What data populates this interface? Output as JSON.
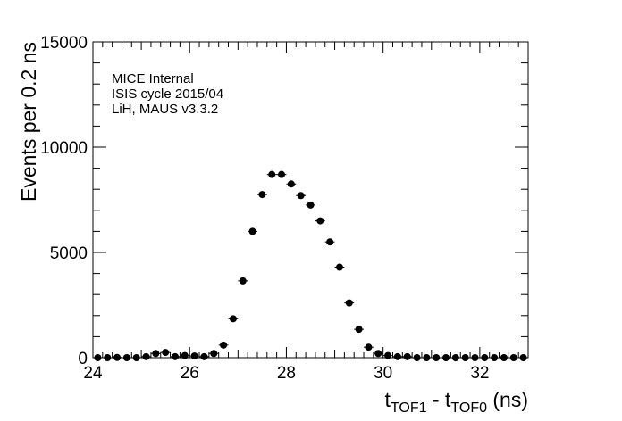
{
  "chart_data": {
    "type": "scatter",
    "title": "",
    "xlabel": {
      "main": "t",
      "sub1": "TOF1",
      "mid": " - t",
      "sub2": "TOF0",
      "unit": " (ns)"
    },
    "ylabel": "Events per 0.2 ns",
    "xlim": [
      24,
      33
    ],
    "ylim": [
      0,
      15000
    ],
    "x_major_ticks": [
      24,
      26,
      28,
      30,
      32
    ],
    "x_tick_labels": [
      "24",
      "26",
      "28",
      "30",
      "32"
    ],
    "y_major_ticks": [
      0,
      5000,
      10000,
      15000
    ],
    "y_tick_labels": [
      "0",
      "5000",
      "10000",
      "15000"
    ],
    "grid": false,
    "annotations": [
      "MICE Internal",
      "ISIS cycle 2015/04",
      "LiH, MAUS v3.3.2"
    ],
    "marker_color": "#000000",
    "series": [
      {
        "x": [
          24.1,
          24.3,
          24.5,
          24.7,
          24.9,
          25.1,
          25.3,
          25.5,
          25.7,
          25.9,
          26.1,
          26.3,
          26.5,
          26.7,
          26.9,
          27.1,
          27.3,
          27.5,
          27.7,
          27.9,
          28.1,
          28.3,
          28.5,
          28.7,
          28.9,
          29.1,
          29.3,
          29.5,
          29.7,
          29.9,
          30.1,
          30.3,
          30.5,
          30.7,
          30.9,
          31.1,
          31.3,
          31.5,
          31.7,
          31.9,
          32.1,
          32.3,
          32.5,
          32.7,
          32.9
        ],
        "y": [
          0,
          0,
          10,
          0,
          0,
          50,
          200,
          250,
          50,
          100,
          80,
          50,
          200,
          600,
          1850,
          3650,
          6000,
          7750,
          8700,
          8700,
          8250,
          7700,
          7250,
          6500,
          5500,
          4300,
          2600,
          1350,
          500,
          200,
          100,
          50,
          50,
          0,
          0,
          0,
          0,
          0,
          0,
          0,
          0,
          0,
          0,
          0,
          0
        ]
      }
    ]
  }
}
